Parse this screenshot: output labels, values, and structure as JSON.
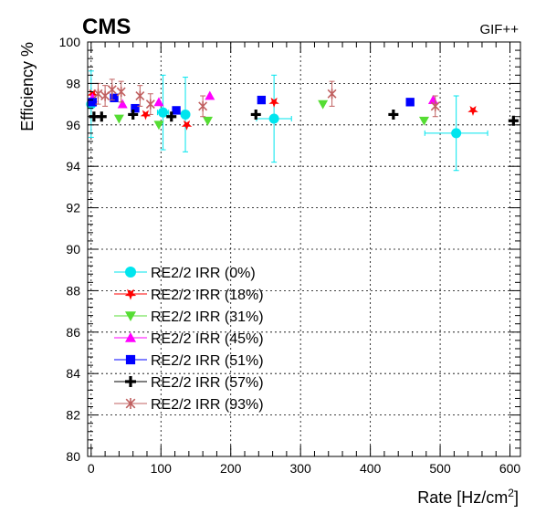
{
  "header": {
    "experiment": "CMS",
    "facility": "GIF++"
  },
  "chart_data": {
    "type": "scatter",
    "xlabel": "Rate [Hz/cm",
    "xlabel_sup": "2",
    "xlabel_end": "]",
    "ylabel": "Efficiency %",
    "xlim": [
      -5,
      615
    ],
    "ylim": [
      80,
      100
    ],
    "x_ticks": [
      0,
      100,
      200,
      300,
      400,
      500,
      600
    ],
    "y_ticks": [
      80,
      82,
      84,
      86,
      88,
      90,
      92,
      94,
      96,
      98,
      100
    ],
    "grid": true,
    "legend_position": "lower-left",
    "series": [
      {
        "name": "RE2/2 IRR (0%)",
        "color": "#00e5ee",
        "marker": "circle",
        "points": [
          {
            "x": 0,
            "y": 97.0,
            "yerr": 1.6
          },
          {
            "x": 103,
            "y": 96.6,
            "yerr": 1.8,
            "xerr": 8
          },
          {
            "x": 135,
            "y": 96.5,
            "yerr": 1.8
          },
          {
            "x": 262,
            "y": 96.3,
            "yerr": 2.1,
            "xerr": 25
          },
          {
            "x": 523,
            "y": 95.6,
            "yerr": 1.8,
            "xerr": 45
          }
        ]
      },
      {
        "name": "RE2/2 IRR (18%)",
        "color": "#ff0000",
        "marker": "star",
        "points": [
          {
            "x": 2,
            "y": 97.5
          },
          {
            "x": 78,
            "y": 96.5
          },
          {
            "x": 137,
            "y": 96.0
          },
          {
            "x": 262,
            "y": 97.1
          },
          {
            "x": 547,
            "y": 96.7
          }
        ]
      },
      {
        "name": "RE2/2 IRR (31%)",
        "color": "#55dd33",
        "marker": "triangle-down",
        "points": [
          {
            "x": 40,
            "y": 96.3
          },
          {
            "x": 97,
            "y": 96.0
          },
          {
            "x": 167,
            "y": 96.2
          },
          {
            "x": 332,
            "y": 97.0
          },
          {
            "x": 477,
            "y": 96.2
          }
        ]
      },
      {
        "name": "RE2/2 IRR (45%)",
        "color": "#ff00ff",
        "marker": "triangle-up",
        "points": [
          {
            "x": 2,
            "y": 97.3
          },
          {
            "x": 45,
            "y": 97.0
          },
          {
            "x": 97,
            "y": 97.1
          },
          {
            "x": 170,
            "y": 97.4
          },
          {
            "x": 490,
            "y": 97.2
          }
        ]
      },
      {
        "name": "RE2/2 IRR (51%)",
        "color": "#0000ff",
        "marker": "square",
        "points": [
          {
            "x": 2,
            "y": 97.1
          },
          {
            "x": 33,
            "y": 97.3
          },
          {
            "x": 63,
            "y": 96.8
          },
          {
            "x": 122,
            "y": 96.7
          },
          {
            "x": 244,
            "y": 97.2
          },
          {
            "x": 457,
            "y": 97.1
          }
        ]
      },
      {
        "name": "RE2/2 IRR (57%)",
        "color": "#000000",
        "marker": "cross",
        "points": [
          {
            "x": 4,
            "y": 96.4
          },
          {
            "x": 15,
            "y": 96.4
          },
          {
            "x": 60,
            "y": 96.5
          },
          {
            "x": 115,
            "y": 96.4
          },
          {
            "x": 236,
            "y": 96.5
          },
          {
            "x": 433,
            "y": 96.5
          },
          {
            "x": 605,
            "y": 96.2
          }
        ]
      },
      {
        "name": "RE2/2 IRR (93%)",
        "color": "#c06060",
        "marker": "x-star",
        "points": [
          {
            "x": 10,
            "y": 97.5,
            "yerr": 0.5
          },
          {
            "x": 20,
            "y": 97.4,
            "yerr": 0.5
          },
          {
            "x": 30,
            "y": 97.7,
            "yerr": 0.5
          },
          {
            "x": 43,
            "y": 97.6,
            "yerr": 0.5
          },
          {
            "x": 70,
            "y": 97.4,
            "yerr": 0.5
          },
          {
            "x": 85,
            "y": 97.0,
            "yerr": 0.5
          },
          {
            "x": 160,
            "y": 96.9,
            "yerr": 0.5
          },
          {
            "x": 345,
            "y": 97.5,
            "yerr": 0.6
          },
          {
            "x": 493,
            "y": 96.9,
            "yerr": 0.5
          }
        ]
      }
    ]
  }
}
